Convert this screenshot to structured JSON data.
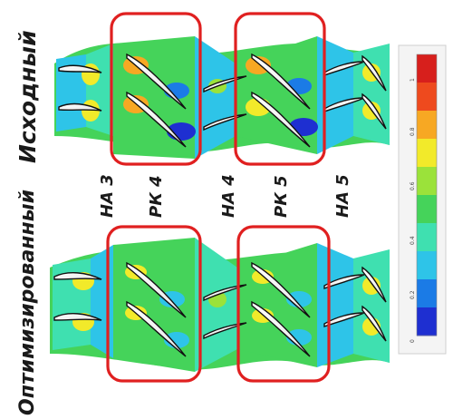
{
  "labels": {
    "top_view": "Исходный",
    "bottom_view": "Оптимизированный"
  },
  "row_labels": [
    "НА 3",
    "РК 4",
    "НА 4",
    "РК 5",
    "НА 5"
  ],
  "colorbar": {
    "ticks": [
      "1",
      "0.8",
      "0.6",
      "0.4",
      "0.2",
      "0"
    ],
    "colors": [
      "#1e2fd1",
      "#1b7be6",
      "#2ec4e8",
      "#3fe0b0",
      "#45d35a",
      "#9be23a",
      "#f2ea2a",
      "#f7a823",
      "#ee4a1e",
      "#d71f1c"
    ]
  },
  "highlight_color": "#e02020"
}
